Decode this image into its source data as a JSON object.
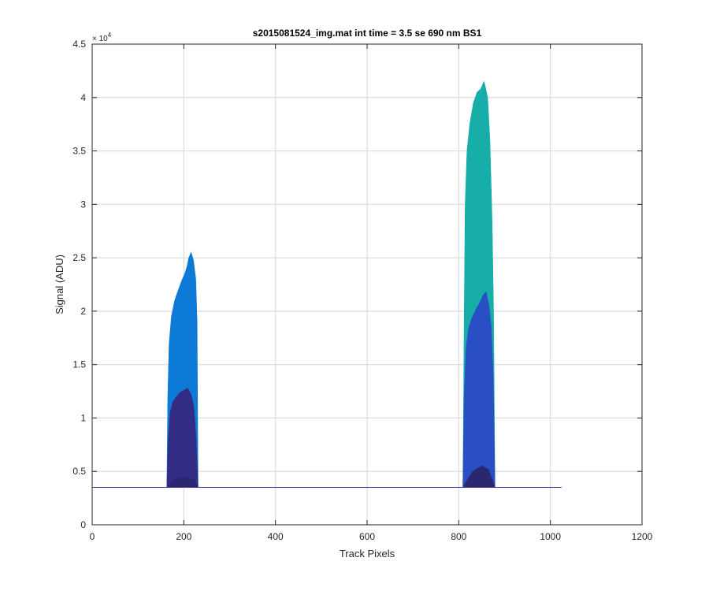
{
  "chart_data": {
    "type": "area",
    "title": "s2015081524_img.mat int time = 3.5 se  690 nm BS1",
    "xlabel": "Track Pixels",
    "ylabel": "Signal (ADU)",
    "xlim": [
      0,
      1200
    ],
    "ylim": [
      0,
      45000
    ],
    "y_exponent_label": "× 10",
    "y_exponent_power": "4",
    "x_ticks": [
      0,
      200,
      400,
      600,
      800,
      1000,
      1200
    ],
    "x_tick_labels": [
      "0",
      "200",
      "400",
      "600",
      "800",
      "1000",
      "1200"
    ],
    "y_ticks": [
      0,
      5000,
      10000,
      15000,
      20000,
      25000,
      30000,
      35000,
      40000,
      45000
    ],
    "y_tick_labels": [
      "0",
      "0.5",
      "1",
      "1.5",
      "2",
      "2.5",
      "3",
      "3.5",
      "4",
      "4.5"
    ],
    "grid": true,
    "legend": "none",
    "baseline": 3500,
    "baseline_x_range": [
      0,
      1024
    ],
    "colors": {
      "dark": "#322C85",
      "mid": "#2A4FC4",
      "blue": "#0E7AD8",
      "teal": "#17ADA8",
      "baseline": "#3A3AA0"
    },
    "series": [
      {
        "color": "#17ADA8",
        "x": [
          809,
          812,
          814,
          818,
          824,
          832,
          840,
          848,
          855,
          858,
          863,
          868,
          873,
          876,
          879
        ],
        "y": [
          3500,
          20000,
          30000,
          35000,
          37500,
          39500,
          40500,
          40800,
          41500,
          41000,
          40000,
          36000,
          28000,
          20000,
          3500
        ]
      },
      {
        "color": "#0E7AD8",
        "x": [
          163,
          165,
          168,
          173,
          180,
          188,
          195,
          202,
          207,
          211,
          216,
          221,
          226,
          229,
          231
        ],
        "y": [
          3500,
          12000,
          17000,
          19500,
          21000,
          22000,
          22800,
          23500,
          24200,
          25000,
          25500,
          24800,
          23000,
          19000,
          3500
        ]
      },
      {
        "color": "#2A4FC4",
        "x": [
          809,
          812,
          816,
          822,
          830,
          838,
          846,
          853,
          860,
          866,
          871,
          875,
          879
        ],
        "y": [
          3500,
          12000,
          16500,
          18500,
          19500,
          20200,
          20800,
          21500,
          21800,
          20500,
          18500,
          14000,
          3500
        ]
      },
      {
        "color": "#322C85",
        "x": [
          163,
          166,
          170,
          176,
          184,
          192,
          200,
          208,
          216,
          222,
          227,
          231
        ],
        "y": [
          3500,
          8000,
          10500,
          11500,
          12000,
          12400,
          12600,
          12800,
          12200,
          11000,
          8000,
          3500
        ]
      },
      {
        "color": "#2B2670",
        "x": [
          163,
          180,
          200,
          220,
          231
        ],
        "y": [
          3500,
          4200,
          4500,
          4300,
          3500
        ]
      },
      {
        "color": "#2B2670",
        "x": [
          809,
          830,
          850,
          865,
          879
        ],
        "y": [
          3500,
          5000,
          5500,
          5200,
          3500
        ]
      }
    ]
  }
}
